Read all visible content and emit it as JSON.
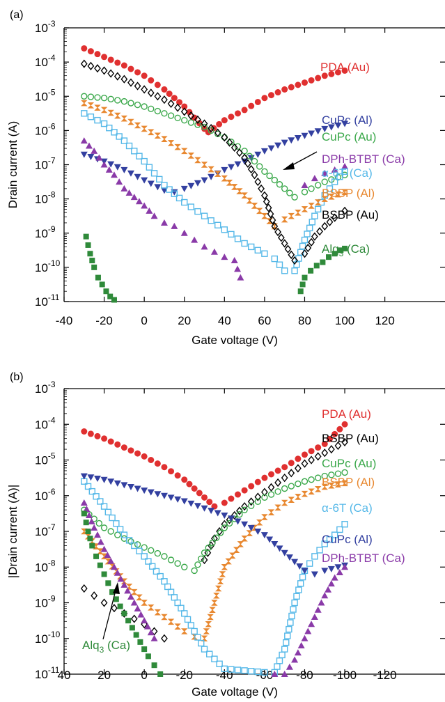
{
  "chart_data": [
    {
      "panel_label": "(a)",
      "type": "scatter",
      "xlabel": "Gate voltage (V)",
      "ylabel": "Drain current (A)",
      "x_ticks": [
        "-40",
        "-20",
        "0",
        "20",
        "40",
        "60",
        "80",
        "100",
        "120"
      ],
      "x_tick_values": [
        -40,
        -20,
        0,
        20,
        40,
        60,
        80,
        100,
        120
      ],
      "xlim": [
        -40,
        150
      ],
      "ylim_log10": [
        -11,
        -3
      ],
      "y_scale": "log",
      "y_ticks": [
        {
          "base": "10",
          "exp": "-3",
          "v": -3
        },
        {
          "base": "10",
          "exp": "-4",
          "v": -4
        },
        {
          "base": "10",
          "exp": "-5",
          "v": -5
        },
        {
          "base": "10",
          "exp": "-6",
          "v": -6
        },
        {
          "base": "10",
          "exp": "-7",
          "v": -7
        },
        {
          "base": "10",
          "exp": "-8",
          "v": -8
        },
        {
          "base": "10",
          "exp": "-9",
          "v": -9
        },
        {
          "base": "10",
          "exp": "-10",
          "v": -10
        },
        {
          "base": "10",
          "exp": "-11",
          "v": -11
        }
      ],
      "series": [
        {
          "name": "PDA (Au)",
          "color": "#e03030",
          "marker": "circle-filled",
          "x": [
            -30,
            -20,
            -10,
            0,
            10,
            20,
            30,
            32,
            40,
            50,
            60,
            70,
            80,
            90,
            100
          ],
          "log10": [
            -3.6,
            -3.85,
            -4.1,
            -4.4,
            -4.8,
            -5.3,
            -5.95,
            -6.05,
            -5.7,
            -5.4,
            -5.05,
            -4.8,
            -4.6,
            -4.4,
            -4.25
          ]
        },
        {
          "name": "CuPc (Al)",
          "color": "#3340a0",
          "marker": "triangle-down-filled",
          "x": [
            -30,
            -20,
            -10,
            0,
            10,
            15,
            20,
            30,
            40,
            50,
            60,
            70,
            80,
            90,
            100
          ],
          "log10": [
            -6.7,
            -6.9,
            -7.15,
            -7.45,
            -7.75,
            -7.8,
            -7.7,
            -7.45,
            -7.15,
            -6.9,
            -6.6,
            -6.35,
            -6.15,
            -5.95,
            -5.8
          ]
        },
        {
          "name": "CuPc (Au)",
          "color": "#3aa84a",
          "marker": "circle-open",
          "x": [
            -30,
            -20,
            -10,
            0,
            10,
            20,
            30,
            40,
            50,
            60,
            70,
            75,
            80,
            90,
            100
          ],
          "log10": [
            -5.0,
            -5.05,
            -5.15,
            -5.3,
            -5.5,
            -5.7,
            -5.9,
            -6.2,
            -6.6,
            -7.2,
            -7.7,
            -7.95,
            -7.8,
            -7.5,
            -7.3
          ]
        },
        {
          "name": "DPh-BTBT (Ca)",
          "color": "#8a3aa8",
          "marker": "triangle-up-filled",
          "x": [
            -30,
            -25,
            -20,
            -15,
            -10,
            -5,
            0,
            5,
            10,
            15,
            20,
            25,
            30,
            35,
            40,
            45,
            48,
            80,
            85,
            90,
            95,
            100
          ],
          "log10": [
            -6.3,
            -6.6,
            -7.0,
            -7.3,
            -7.7,
            -7.95,
            -8.2,
            -8.5,
            -8.7,
            -8.8,
            -9.0,
            -9.2,
            -9.4,
            -9.55,
            -9.7,
            -9.8,
            -10.3,
            -7.6,
            -7.4,
            -7.25,
            -7.15,
            -7.05
          ]
        },
        {
          "name": "α-6T (Ca)",
          "color": "#55b8e8",
          "marker": "square-open",
          "x": [
            -30,
            -20,
            -10,
            0,
            10,
            20,
            30,
            40,
            50,
            60,
            65,
            70,
            75,
            80,
            85,
            90,
            95,
            100
          ],
          "log10": [
            -5.5,
            -5.8,
            -6.3,
            -6.9,
            -7.6,
            -8.1,
            -8.5,
            -8.9,
            -9.3,
            -9.6,
            -9.75,
            -10.1,
            -10.1,
            -9.2,
            -8.5,
            -7.9,
            -7.5,
            -7.2
          ]
        },
        {
          "name": "BSBP (Al)",
          "color": "#e88830",
          "marker": "hourglass-filled",
          "x": [
            -30,
            -20,
            -10,
            0,
            10,
            20,
            30,
            40,
            50,
            60,
            65,
            70,
            80,
            90,
            100
          ],
          "log10": [
            -5.2,
            -5.4,
            -5.65,
            -5.95,
            -6.25,
            -6.6,
            -7.0,
            -7.4,
            -7.9,
            -8.5,
            -8.8,
            -8.6,
            -8.3,
            -8.0,
            -7.8
          ]
        },
        {
          "name": "BSBP (Au)",
          "color": "#000000",
          "marker": "diamond-open",
          "x": [
            -30,
            -20,
            -10,
            0,
            10,
            20,
            30,
            40,
            50,
            55,
            60,
            65,
            70,
            75,
            80,
            85,
            90,
            95,
            100
          ],
          "log10": [
            -4.05,
            -4.25,
            -4.5,
            -4.8,
            -5.1,
            -5.45,
            -5.8,
            -6.2,
            -6.8,
            -7.3,
            -7.9,
            -8.8,
            -9.3,
            -9.8,
            -9.6,
            -9.1,
            -8.8,
            -8.55,
            -8.35
          ]
        },
        {
          "name": "Alq3 (Ca)",
          "label_main": "Alq",
          "label_sub": "3",
          "label_tail": " (Ca)",
          "color": "#2f8a3a",
          "marker": "square-filled",
          "x": [
            -29,
            -27,
            -25,
            -23,
            -21,
            -19,
            -17,
            -15,
            78,
            80,
            83,
            86,
            89,
            92,
            95,
            98,
            100
          ],
          "log10": [
            -9.1,
            -9.6,
            -10.0,
            -10.3,
            -10.5,
            -10.7,
            -10.85,
            -10.95,
            -10.7,
            -10.3,
            -10.1,
            -9.95,
            -9.85,
            -9.7,
            -9.6,
            -9.5,
            -9.45
          ]
        }
      ]
    },
    {
      "panel_label": "(b)",
      "type": "scatter",
      "xlabel": "Gate voltage (V)",
      "ylabel": "|Drain current (A)|",
      "x_ticks": [
        "40",
        "20",
        "0",
        "-20",
        "-40",
        "-60",
        "-80",
        "-100",
        "-120"
      ],
      "x_tick_values": [
        40,
        20,
        0,
        -20,
        -40,
        -60,
        -80,
        -100,
        -120
      ],
      "xlim": [
        40,
        -150
      ],
      "ylim_log10": [
        -11,
        -3
      ],
      "y_scale": "log",
      "y_ticks": [
        {
          "base": "10",
          "exp": "-3",
          "v": -3
        },
        {
          "base": "10",
          "exp": "-4",
          "v": -4
        },
        {
          "base": "10",
          "exp": "-5",
          "v": -5
        },
        {
          "base": "10",
          "exp": "-6",
          "v": -6
        },
        {
          "base": "10",
          "exp": "-7",
          "v": -7
        },
        {
          "base": "10",
          "exp": "-8",
          "v": -8
        },
        {
          "base": "10",
          "exp": "-9",
          "v": -9
        },
        {
          "base": "10",
          "exp": "-10",
          "v": -10
        },
        {
          "base": "10",
          "exp": "-11",
          "v": -11
        }
      ],
      "series": [
        {
          "name": "PDA (Au)",
          "color": "#e03030",
          "marker": "circle-filled",
          "x": [
            30,
            20,
            10,
            0,
            -10,
            -20,
            -30,
            -35,
            -40,
            -50,
            -60,
            -70,
            -80,
            -90,
            -100
          ],
          "log10": [
            -4.2,
            -4.4,
            -4.65,
            -4.9,
            -5.2,
            -5.55,
            -6.05,
            -6.3,
            -6.2,
            -5.85,
            -5.5,
            -5.2,
            -4.85,
            -4.55,
            -4.0
          ]
        },
        {
          "name": "BSBP (Au)",
          "color": "#000000",
          "marker": "diamond-open",
          "x": [
            30,
            25,
            20,
            15,
            10,
            5,
            0,
            -5,
            -10,
            -30,
            -35,
            -40,
            -50,
            -60,
            -70,
            -80,
            -90,
            -100
          ],
          "log10": [
            -8.6,
            -8.8,
            -9.0,
            -9.15,
            -9.3,
            -9.45,
            -9.6,
            -9.8,
            -10.0,
            -7.8,
            -7.2,
            -6.8,
            -6.3,
            -5.9,
            -5.5,
            -5.1,
            -4.8,
            -4.5
          ]
        },
        {
          "name": "CuPc (Au)",
          "color": "#3aa84a",
          "marker": "circle-open",
          "x": [
            30,
            20,
            10,
            0,
            -10,
            -20,
            -25,
            -30,
            -40,
            -50,
            -60,
            -70,
            -80,
            -90,
            -100
          ],
          "log10": [
            -6.4,
            -6.9,
            -7.2,
            -7.45,
            -7.7,
            -8.0,
            -8.1,
            -7.6,
            -6.9,
            -6.4,
            -6.05,
            -5.8,
            -5.6,
            -5.45,
            -5.35
          ]
        },
        {
          "name": "BSBP (Al)",
          "color": "#e88830",
          "marker": "hourglass-filled",
          "x": [
            30,
            20,
            10,
            0,
            -10,
            -20,
            -25,
            -30,
            -35,
            -40,
            -50,
            -60,
            -70,
            -80,
            -90,
            -100
          ],
          "log10": [
            -7.0,
            -7.7,
            -8.4,
            -9.0,
            -9.4,
            -9.8,
            -9.95,
            -10.0,
            -9.0,
            -8.0,
            -7.2,
            -6.6,
            -6.2,
            -5.95,
            -5.75,
            -5.65
          ]
        },
        {
          "name": "α-6T (Ca)",
          "color": "#55b8e8",
          "marker": "square-open",
          "x": [
            30,
            20,
            10,
            0,
            -10,
            -20,
            -30,
            -40,
            -50,
            -60,
            -65,
            -70,
            -75,
            -80,
            -85,
            -90,
            -95,
            -100
          ],
          "log10": [
            -5.6,
            -6.3,
            -7.1,
            -7.7,
            -8.4,
            -9.3,
            -10.3,
            -10.85,
            -10.9,
            -10.95,
            -10.95,
            -10.3,
            -9.0,
            -8.1,
            -7.7,
            -7.35,
            -7.1,
            -6.8
          ]
        },
        {
          "name": "CuPc (Al)",
          "color": "#3340a0",
          "marker": "triangle-down-filled",
          "x": [
            30,
            20,
            10,
            0,
            -10,
            -20,
            -30,
            -40,
            -50,
            -60,
            -70,
            -75,
            -80,
            -85,
            -90,
            -100
          ],
          "log10": [
            -5.45,
            -5.55,
            -5.7,
            -5.85,
            -6.0,
            -6.15,
            -6.35,
            -6.55,
            -6.8,
            -7.1,
            -7.6,
            -7.85,
            -8.1,
            -8.2,
            -8.1,
            -7.95
          ]
        },
        {
          "name": "DPh-BTBT (Ca)",
          "color": "#8a3aa8",
          "marker": "triangle-up-filled",
          "x": [
            30,
            25,
            20,
            15,
            10,
            5,
            0,
            -5,
            -65,
            -70,
            -75,
            -80,
            -85,
            -90,
            -95,
            -100
          ],
          "log10": [
            -6.2,
            -6.9,
            -7.5,
            -8.0,
            -8.5,
            -9.0,
            -9.5,
            -10.0,
            -11.0,
            -11.0,
            -10.6,
            -10.0,
            -9.4,
            -8.8,
            -8.3,
            -8.0
          ]
        },
        {
          "name": "Alq3 (Ca)",
          "label_main": "Alq",
          "label_sub": "3",
          "label_tail": " (Ca)",
          "color": "#2f8a3a",
          "marker": "square-filled",
          "x": [
            30,
            28,
            26,
            24,
            22,
            20,
            18,
            16,
            14,
            12,
            10,
            8,
            6,
            4,
            2,
            0,
            -2,
            -5,
            -8
          ],
          "log10": [
            -6.5,
            -7.0,
            -7.4,
            -7.7,
            -7.95,
            -8.2,
            -8.45,
            -8.7,
            -8.9,
            -9.1,
            -9.3,
            -9.5,
            -9.7,
            -9.9,
            -10.1,
            -10.3,
            -10.5,
            -10.75,
            -11.0
          ]
        }
      ]
    }
  ]
}
